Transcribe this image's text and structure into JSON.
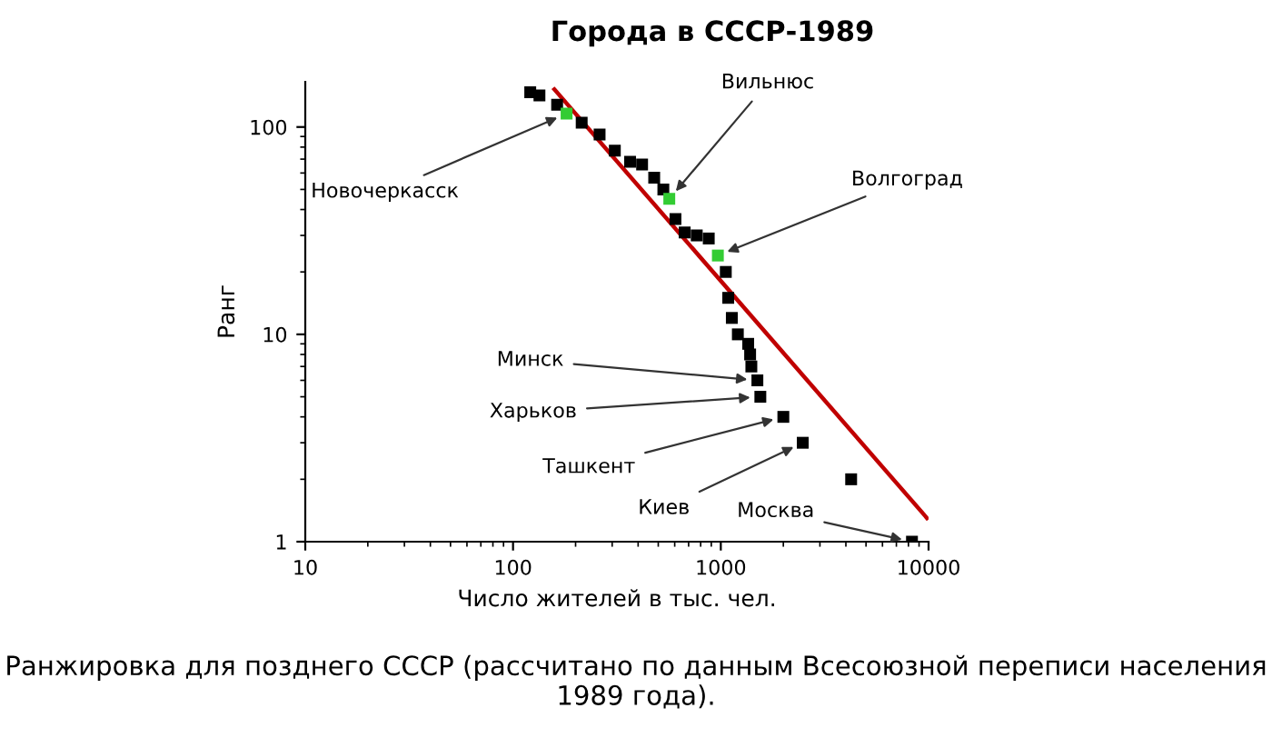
{
  "chart_data": {
    "type": "scatter",
    "title": "Города в СССР-1989",
    "xlabel": "Число жителей в тыс. чел.",
    "ylabel": "Ранг",
    "log": "xy",
    "xlim": [
      10,
      10000
    ],
    "ylim": [
      1,
      165
    ],
    "xticks": [
      10,
      100,
      1000,
      10000
    ],
    "yticks": [
      1,
      10,
      100
    ],
    "grid": false,
    "legend": false,
    "series": [
      {
        "marker": "square",
        "color": "#000000",
        "x": [
          121,
          134,
          163,
          181,
          214,
          261,
          309,
          366,
          418,
          478,
          529,
          565,
          605,
          670,
          766,
          875,
          968,
          1057,
          1086,
          1130,
          1208,
          1355,
          1384,
          1403,
          1500,
          1550,
          2000,
          2480,
          4240,
          8320
        ],
        "values": [
          147,
          142,
          128,
          null,
          105,
          92,
          77,
          68,
          66,
          57,
          50,
          null,
          36,
          31,
          30,
          29,
          null,
          20,
          15,
          12,
          10,
          9,
          8,
          7,
          6,
          5,
          4,
          3,
          2,
          1
        ]
      },
      {
        "marker": "square",
        "color": "#33cc33",
        "x": [
          181,
          565,
          968
        ],
        "values": [
          116,
          45,
          24
        ]
      },
      {
        "type": "line",
        "color": "#c00000",
        "x": [
          158,
          9820
        ],
        "values": [
          152,
          1.3
        ]
      }
    ],
    "annotations": [
      {
        "text": "Новочеркасск",
        "x": 181,
        "y": 116
      },
      {
        "text": "Вильнюс",
        "x": 565,
        "y": 45
      },
      {
        "text": "Волгоград",
        "x": 968,
        "y": 24
      },
      {
        "text": "Минск",
        "x": 1500,
        "y": 6
      },
      {
        "text": "Харьков",
        "x": 1550,
        "y": 5
      },
      {
        "text": "Ташкент",
        "x": 2000,
        "y": 4
      },
      {
        "text": "Киев",
        "x": 2480,
        "y": 3
      },
      {
        "text": "Москва",
        "x": 8320,
        "y": 1
      },
      "Ранжировка для позднего СССР (рассчитано по данным Всесоюзной переписи населения 1989 года)."
    ]
  }
}
